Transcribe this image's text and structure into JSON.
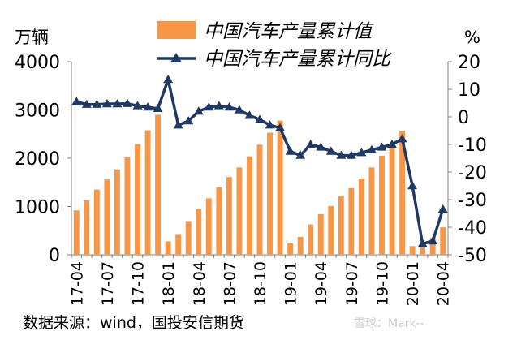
{
  "chart_data": {
    "type": "bar+line",
    "left_unit": "万辆",
    "right_unit": "%",
    "left_ticks": [
      "0",
      "1000",
      "2000",
      "3000",
      "4000"
    ],
    "right_ticks": [
      "-50",
      "-40",
      "-30",
      "-20",
      "-10",
      "0",
      "10",
      "20"
    ],
    "ylim_left": [
      0,
      4000
    ],
    "ylim_right": [
      -50,
      20
    ],
    "x_tick_labels": [
      "17-04",
      "17-07",
      "17-10",
      "18-01",
      "18-04",
      "18-07",
      "18-10",
      "19-01",
      "19-04",
      "19-07",
      "19-10",
      "20-01",
      "20-04"
    ],
    "categories": [
      "17-04",
      "17-05",
      "17-06",
      "17-07",
      "17-08",
      "17-09",
      "17-10",
      "17-11",
      "17-12",
      "18-01",
      "18-02",
      "18-03",
      "18-04",
      "18-05",
      "18-06",
      "18-07",
      "18-08",
      "18-09",
      "18-10",
      "18-11",
      "18-12",
      "19-01",
      "19-02",
      "19-03",
      "19-04",
      "19-05",
      "19-06",
      "19-07",
      "19-08",
      "19-09",
      "19-10",
      "19-11",
      "19-12",
      "20-01",
      "20-02",
      "20-03",
      "20-04"
    ],
    "series": [
      {
        "name": "中国汽车产量累计值",
        "kind": "bar",
        "axis": "left",
        "color": "#f79646",
        "values": [
          920,
          1130,
          1350,
          1560,
          1770,
          2020,
          2290,
          2580,
          2900,
          280,
          430,
          700,
          950,
          1170,
          1400,
          1610,
          1810,
          2040,
          2280,
          2530,
          2780,
          240,
          370,
          630,
          840,
          1010,
          1210,
          1380,
          1580,
          1810,
          2050,
          2300,
          2570,
          180,
          150,
          350,
          570
        ]
      },
      {
        "name": "中国汽车产量累计同比",
        "kind": "line",
        "axis": "right",
        "color": "#1f3864",
        "values": [
          5.5,
          4.5,
          4.5,
          4.7,
          4.7,
          4.8,
          4.0,
          3.5,
          3.0,
          13.5,
          -3.0,
          -1.5,
          2.0,
          3.5,
          4.0,
          3.5,
          2.5,
          0.5,
          -1.0,
          -3.0,
          -4.0,
          -12.5,
          -14.0,
          -10.0,
          -11.0,
          -12.5,
          -14.0,
          -14.0,
          -13.0,
          -12.0,
          -11.0,
          -10.0,
          -8.0,
          -25.0,
          -46.0,
          -45.0,
          -33.5
        ]
      }
    ],
    "legend_position": "top"
  },
  "source_note": "数据来源：wind，国投安信期货",
  "watermark": "雪球：Mark--"
}
